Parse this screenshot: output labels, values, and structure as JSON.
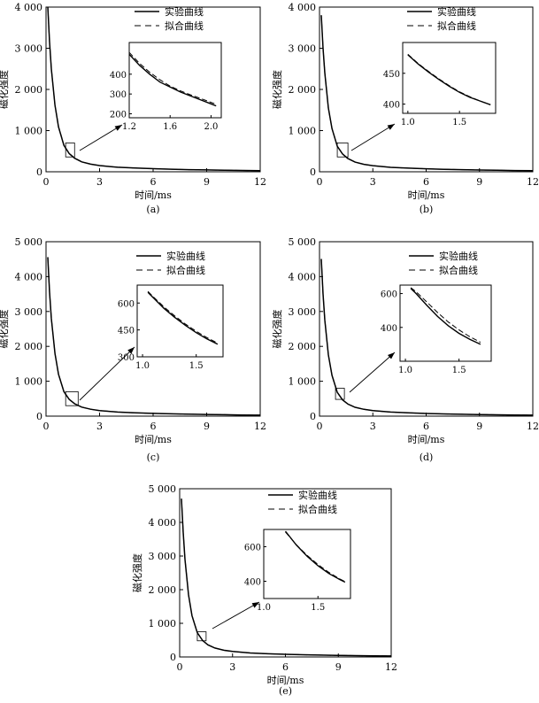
{
  "legend": {
    "experimental": "实验曲线",
    "fitted": "拟合曲线"
  },
  "chart_data": [
    {
      "type": "line",
      "panel_label": "(a)",
      "xlabel": "时间/ms",
      "ylabel": "磁化强度",
      "xlim": [
        0,
        12
      ],
      "ylim": [
        0,
        4000
      ],
      "xticks": [
        "0",
        "3",
        "6",
        "9",
        "12"
      ],
      "yticks": [
        "0",
        "1 000",
        "2 000",
        "3 000",
        "4 000"
      ],
      "series": [
        {
          "name": "实验曲线",
          "style": "solid",
          "x": [
            0.1,
            0.2,
            0.3,
            0.5,
            0.7,
            1.0,
            1.3,
            1.6,
            2.0,
            2.5,
            3.0,
            4.0,
            5.0,
            6.0,
            7.0,
            8.0,
            9.0,
            10.0,
            11.0,
            12.0
          ],
          "y": [
            4000,
            3150,
            2500,
            1620,
            1090,
            640,
            440,
            330,
            240,
            185,
            150,
            110,
            90,
            75,
            62,
            52,
            45,
            38,
            32,
            28
          ]
        },
        {
          "name": "拟合曲线",
          "style": "dashed",
          "x": [
            0.1,
            0.2,
            0.3,
            0.5,
            0.7,
            1.0,
            1.3,
            1.6,
            2.0,
            2.5,
            3.0,
            4.0,
            5.0,
            6.0,
            7.0,
            8.0,
            9.0,
            10.0,
            11.0,
            12.0
          ],
          "y": [
            4010,
            3140,
            2510,
            1610,
            1100,
            650,
            445,
            335,
            242,
            186,
            151,
            111,
            90,
            75,
            62,
            52,
            45,
            38,
            32,
            28
          ]
        }
      ],
      "inset": {
        "xlim": [
          1.2,
          2.1
        ],
        "ylim": [
          180,
          560
        ],
        "xticks": [
          "1.2",
          "1.6",
          "2.0"
        ],
        "yticks": [
          "200",
          "300",
          "400"
        ],
        "series": [
          {
            "name": "实验曲线",
            "x": [
              1.2,
              1.3,
              1.4,
              1.5,
              1.6,
              1.7,
              1.8,
              1.9,
              2.0,
              2.05
            ],
            "y": [
              500,
              445,
              400,
              360,
              335,
              310,
              290,
              270,
              250,
              240
            ]
          },
          {
            "name": "拟合曲线",
            "x": [
              1.2,
              1.3,
              1.4,
              1.5,
              1.6,
              1.7,
              1.8,
              1.9,
              2.0,
              2.05
            ],
            "y": [
              510,
              455,
              410,
              372,
              340,
              316,
              296,
              277,
              258,
              248
            ]
          }
        ]
      }
    },
    {
      "type": "line",
      "panel_label": "(b)",
      "xlabel": "时间/ms",
      "ylabel": "磁化强度",
      "xlim": [
        0,
        12
      ],
      "ylim": [
        0,
        4000
      ],
      "xticks": [
        "0",
        "3",
        "6",
        "9",
        "12"
      ],
      "yticks": [
        "0",
        "1 000",
        "2 000",
        "3 000",
        "4 000"
      ],
      "series": [
        {
          "name": "实验曲线",
          "style": "solid",
          "x": [
            0.1,
            0.2,
            0.3,
            0.5,
            0.7,
            1.0,
            1.3,
            1.6,
            2.0,
            2.5,
            3.0,
            4.0,
            5.0,
            6.0,
            7.0,
            8.0,
            9.0,
            10.0,
            11.0,
            12.0
          ],
          "y": [
            3800,
            3000,
            2400,
            1550,
            1050,
            620,
            430,
            320,
            235,
            180,
            148,
            108,
            88,
            73,
            60,
            51,
            44,
            37,
            31,
            27
          ]
        },
        {
          "name": "拟合曲线",
          "style": "dashed",
          "x": [
            0.1,
            0.2,
            0.3,
            0.5,
            0.7,
            1.0,
            1.3,
            1.6,
            2.0,
            2.5,
            3.0,
            4.0,
            5.0,
            6.0,
            7.0,
            8.0,
            9.0,
            10.0,
            11.0,
            12.0
          ],
          "y": [
            3805,
            2995,
            2405,
            1548,
            1052,
            622,
            431,
            321,
            236,
            181,
            148,
            108,
            88,
            73,
            60,
            51,
            44,
            37,
            31,
            27
          ]
        }
      ],
      "inset": {
        "xlim": [
          0.95,
          1.85
        ],
        "ylim": [
          385,
          500
        ],
        "xticks": [
          "1.0",
          "1.5"
        ],
        "yticks": [
          "400",
          "450"
        ],
        "series": [
          {
            "name": "实验曲线",
            "x": [
              1.0,
              1.1,
              1.2,
              1.3,
              1.4,
              1.5,
              1.6,
              1.7,
              1.8
            ],
            "y": [
              480,
              465,
              452,
              440,
              429,
              419,
              411,
              405,
              399
            ]
          },
          {
            "name": "拟合曲线",
            "x": [
              1.0,
              1.1,
              1.2,
              1.3,
              1.4,
              1.5,
              1.6,
              1.7,
              1.8
            ],
            "y": [
              481,
              466,
              453,
              441,
              430,
              420,
              412,
              405,
              399
            ]
          }
        ]
      }
    },
    {
      "type": "line",
      "panel_label": "(c)",
      "xlabel": "时间/ms",
      "ylabel": "磁化强度",
      "xlim": [
        0,
        12
      ],
      "ylim": [
        0,
        5000
      ],
      "xticks": [
        "0",
        "3",
        "6",
        "9",
        "12"
      ],
      "yticks": [
        "0",
        "1 000",
        "2 000",
        "3 000",
        "4 000",
        "5 000"
      ],
      "series": [
        {
          "name": "实验曲线",
          "style": "solid",
          "x": [
            0.1,
            0.2,
            0.3,
            0.5,
            0.7,
            1.0,
            1.3,
            1.6,
            2.0,
            2.5,
            3.0,
            4.0,
            5.0,
            6.0,
            7.0,
            8.0,
            9.0,
            10.0,
            11.0,
            12.0
          ],
          "y": [
            4550,
            3550,
            2800,
            1800,
            1200,
            700,
            480,
            355,
            260,
            198,
            160,
            118,
            95,
            78,
            65,
            55,
            47,
            40,
            34,
            29
          ]
        },
        {
          "name": "拟合曲线",
          "style": "dashed",
          "x": [
            0.1,
            0.2,
            0.3,
            0.5,
            0.7,
            1.0,
            1.3,
            1.6,
            2.0,
            2.5,
            3.0,
            4.0,
            5.0,
            6.0,
            7.0,
            8.0,
            9.0,
            10.0,
            11.0,
            12.0
          ],
          "y": [
            4560,
            3545,
            2810,
            1795,
            1205,
            705,
            482,
            356,
            261,
            198,
            160,
            118,
            95,
            78,
            65,
            55,
            47,
            40,
            34,
            29
          ]
        }
      ],
      "inset": {
        "xlim": [
          0.95,
          1.75
        ],
        "ylim": [
          300,
          700
        ],
        "xticks": [
          "1.0",
          "1.5"
        ],
        "yticks": [
          "300",
          "450",
          "600"
        ],
        "series": [
          {
            "name": "实验曲线",
            "x": [
              1.05,
              1.1,
              1.2,
              1.3,
              1.4,
              1.5,
              1.6,
              1.7
            ],
            "y": [
              660,
              630,
              570,
              520,
              475,
              435,
              400,
              370
            ]
          },
          {
            "name": "拟合曲线",
            "x": [
              1.05,
              1.1,
              1.2,
              1.3,
              1.4,
              1.5,
              1.6,
              1.7
            ],
            "y": [
              665,
              635,
              578,
              528,
              482,
              442,
              407,
              376
            ]
          }
        ]
      }
    },
    {
      "type": "line",
      "panel_label": "(d)",
      "xlabel": "时间/ms",
      "ylabel": "磁化强度",
      "xlim": [
        0,
        12
      ],
      "ylim": [
        0,
        5000
      ],
      "xticks": [
        "0",
        "3",
        "6",
        "9",
        "12"
      ],
      "yticks": [
        "0",
        "1 000",
        "2 000",
        "3 000",
        "4 000",
        "5 000"
      ],
      "series": [
        {
          "name": "实验曲线",
          "style": "solid",
          "x": [
            0.1,
            0.2,
            0.3,
            0.5,
            0.7,
            1.0,
            1.3,
            1.6,
            2.0,
            2.5,
            3.0,
            4.0,
            5.0,
            6.0,
            7.0,
            8.0,
            9.0,
            10.0,
            11.0,
            12.0
          ],
          "y": [
            4500,
            3500,
            2750,
            1760,
            1170,
            680,
            465,
            345,
            255,
            195,
            158,
            116,
            93,
            77,
            64,
            54,
            46,
            39,
            33,
            28
          ]
        },
        {
          "name": "拟合曲线",
          "style": "dashed",
          "x": [
            0.1,
            0.2,
            0.3,
            0.5,
            0.7,
            1.0,
            1.3,
            1.6,
            2.0,
            2.5,
            3.0,
            4.0,
            5.0,
            6.0,
            7.0,
            8.0,
            9.0,
            10.0,
            11.0,
            12.0
          ],
          "y": [
            4510,
            3495,
            2760,
            1755,
            1175,
            685,
            467,
            346,
            256,
            195,
            158,
            116,
            93,
            77,
            64,
            54,
            46,
            39,
            33,
            28
          ]
        }
      ],
      "inset": {
        "xlim": [
          0.95,
          1.8
        ],
        "ylim": [
          200,
          650
        ],
        "xticks": [
          "1.0",
          "1.5"
        ],
        "yticks": [
          "400",
          "600"
        ],
        "series": [
          {
            "name": "实验曲线",
            "x": [
              1.05,
              1.1,
              1.2,
              1.3,
              1.4,
              1.5,
              1.6,
              1.7
            ],
            "y": [
              630,
              600,
              530,
              465,
              410,
              365,
              330,
              300
            ]
          },
          {
            "name": "拟合曲线",
            "x": [
              1.05,
              1.1,
              1.2,
              1.3,
              1.4,
              1.5,
              1.6,
              1.7
            ],
            "y": [
              635,
              610,
              550,
              488,
              432,
              385,
              345,
              312
            ]
          }
        ]
      }
    },
    {
      "type": "line",
      "panel_label": "(e)",
      "xlabel": "时间/ms",
      "ylabel": "磁化强度",
      "xlim": [
        0,
        12
      ],
      "ylim": [
        0,
        5000
      ],
      "xticks": [
        "0",
        "3",
        "6",
        "9",
        "12"
      ],
      "yticks": [
        "0",
        "1 000",
        "2 000",
        "3 000",
        "4 000",
        "5 000"
      ],
      "series": [
        {
          "name": "实验曲线",
          "style": "solid",
          "x": [
            0.1,
            0.2,
            0.3,
            0.5,
            0.7,
            1.0,
            1.3,
            1.6,
            2.0,
            2.5,
            3.0,
            4.0,
            5.0,
            6.0,
            7.0,
            8.0,
            9.0,
            10.0,
            11.0,
            12.0
          ],
          "y": [
            4700,
            3700,
            2900,
            1850,
            1230,
            720,
            490,
            360,
            265,
            200,
            162,
            118,
            95,
            78,
            65,
            55,
            47,
            40,
            34,
            29
          ]
        },
        {
          "name": "拟合曲线",
          "style": "dashed",
          "x": [
            0.1,
            0.2,
            0.3,
            0.5,
            0.7,
            1.0,
            1.3,
            1.6,
            2.0,
            2.5,
            3.0,
            4.0,
            5.0,
            6.0,
            7.0,
            8.0,
            9.0,
            10.0,
            11.0,
            12.0
          ],
          "y": [
            4710,
            3695,
            2910,
            1845,
            1235,
            725,
            492,
            361,
            266,
            200,
            162,
            118,
            95,
            78,
            65,
            55,
            47,
            40,
            34,
            29
          ]
        }
      ],
      "inset": {
        "xlim": [
          1.0,
          1.8
        ],
        "ylim": [
          300,
          700
        ],
        "xticks": [
          "1.0",
          "1.5"
        ],
        "yticks": [
          "400",
          "600"
        ],
        "series": [
          {
            "name": "实验曲线",
            "x": [
              1.2,
              1.3,
              1.4,
              1.5,
              1.6,
              1.7,
              1.75
            ],
            "y": [
              690,
              610,
              545,
              490,
              445,
              410,
              395
            ]
          },
          {
            "name": "拟合曲线",
            "x": [
              1.2,
              1.3,
              1.4,
              1.5,
              1.6,
              1.7,
              1.75
            ],
            "y": [
              685,
              612,
              550,
              497,
              452,
              414,
              398
            ]
          }
        ]
      }
    }
  ]
}
